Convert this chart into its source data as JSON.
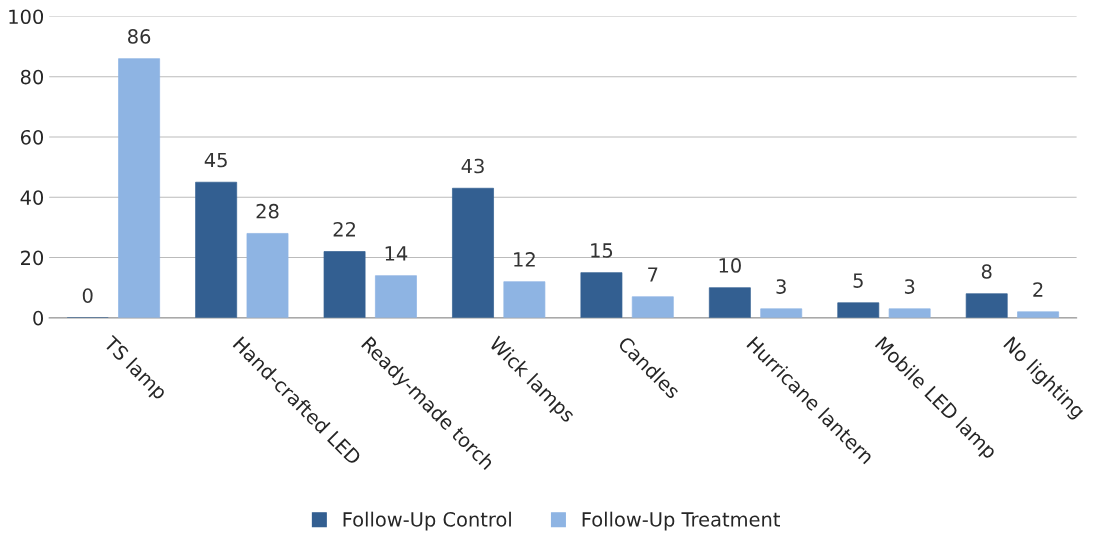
{
  "chart_data": {
    "type": "bar",
    "categories": [
      "TS lamp",
      "Hand-crafted LED",
      "Ready-made torch",
      "Wick lamps",
      "Candles",
      "Hurricane lantern",
      "Mobile LED lamp",
      "No lighting"
    ],
    "series": [
      {
        "name": "Follow-Up Control",
        "color": "#335f91",
        "values": [
          0,
          45,
          22,
          43,
          15,
          10,
          5,
          8
        ]
      },
      {
        "name": "Follow-Up Treatment",
        "color": "#8eb4e3",
        "values": [
          86,
          28,
          14,
          12,
          7,
          3,
          3,
          2
        ]
      }
    ],
    "ylim": [
      0,
      100
    ],
    "yticks": [
      0,
      20,
      40,
      60,
      80,
      100
    ],
    "grid": "y",
    "legend": "bottom",
    "data_labels": true
  }
}
